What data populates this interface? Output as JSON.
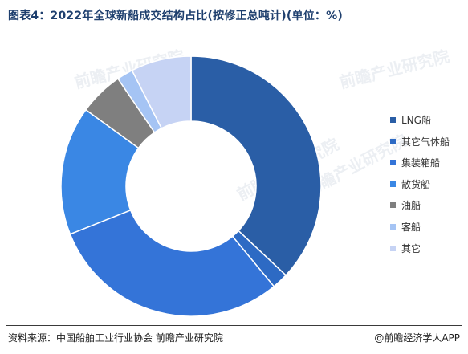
{
  "title": "图表4：2022年全球新船成交结构占比(按修正总吨计)(单位：%)",
  "footer": {
    "source": "资料来源：中国船舶工业行业协会 前瞻产业研究院",
    "brand": "@前瞻经济学人APP"
  },
  "watermark": "前瞻产业研究院",
  "chart_data": {
    "type": "pie",
    "donut": true,
    "title": "图表4：2022年全球新船成交结构占比(按修正总吨计)(单位：%)",
    "unit": "%",
    "legend_position": "right",
    "categories": [
      "LNG船",
      "其它气体船",
      "集装箱船",
      "散货船",
      "油船",
      "客船",
      "其它"
    ],
    "values": [
      37.0,
      2.0,
      30.0,
      16.0,
      5.5,
      2.0,
      7.5
    ],
    "colors": [
      "#2a5ea6",
      "#2d6ac4",
      "#3474d8",
      "#3a87e4",
      "#7f7f7f",
      "#a5c4f4",
      "#c6d3f4"
    ]
  }
}
